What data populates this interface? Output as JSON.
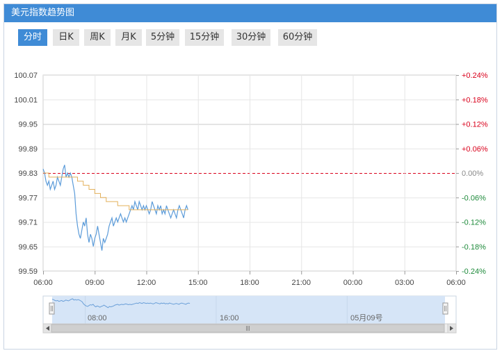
{
  "header": {
    "title": "美元指数趋势图"
  },
  "tabs": [
    {
      "label": "分时",
      "active": true
    },
    {
      "label": "日K",
      "active": false
    },
    {
      "label": "周K",
      "active": false
    },
    {
      "label": "月K",
      "active": false
    },
    {
      "label": "5分钟",
      "active": false
    },
    {
      "label": "15分钟",
      "active": false
    },
    {
      "label": "30分钟",
      "active": false
    },
    {
      "label": "60分钟",
      "active": false
    }
  ],
  "colors": {
    "accent": "#3f8bd6",
    "price_line": "#5b9bd9",
    "avg_line": "#e3b05a",
    "up": "#d9001b",
    "down": "#1e8a3b",
    "baseline": "#d9001b"
  },
  "chart_data": {
    "type": "line",
    "x_ticks": [
      "06:00",
      "09:00",
      "12:00",
      "15:00",
      "18:00",
      "21:00",
      "00:00",
      "03:00",
      "06:00"
    ],
    "y_ticks": [
      "100.07",
      "100.01",
      "99.95",
      "99.89",
      "99.83",
      "99.77",
      "99.71",
      "99.65",
      "99.59"
    ],
    "pct_ticks": [
      "+0.24%",
      "+0.18%",
      "+0.12%",
      "+0.06%",
      "0.00%",
      "-0.06%",
      "-0.12%",
      "-0.18%",
      "-0.24%"
    ],
    "ylim": [
      99.59,
      100.07
    ],
    "base_price": 99.83,
    "xlim_minutes": [
      0,
      1440
    ],
    "series": [
      {
        "type": "price",
        "x_minutes": [
          0,
          5,
          10,
          15,
          20,
          25,
          30,
          35,
          40,
          45,
          50,
          55,
          60,
          65,
          70,
          75,
          80,
          85,
          90,
          95,
          100,
          105,
          110,
          115,
          120,
          125,
          130,
          135,
          140,
          145,
          150,
          155,
          160,
          165,
          170,
          175,
          180,
          185,
          190,
          195,
          200,
          205,
          210,
          215,
          220,
          225,
          230,
          235,
          240,
          245,
          250,
          255,
          260,
          265,
          270,
          275,
          280,
          285,
          290,
          295,
          300,
          305,
          310,
          315,
          320,
          325,
          330,
          335,
          340,
          345,
          350,
          355,
          360,
          365,
          370,
          375,
          380,
          385,
          390,
          395,
          400,
          405,
          410,
          415,
          420,
          425,
          430,
          435,
          440,
          445,
          450,
          455,
          460,
          465,
          470,
          475,
          480,
          485,
          490,
          495,
          500,
          505
        ],
        "values": [
          99.84,
          99.83,
          99.81,
          99.8,
          99.81,
          99.79,
          99.8,
          99.81,
          99.79,
          99.8,
          99.82,
          99.81,
          99.8,
          99.82,
          99.84,
          99.85,
          99.82,
          99.83,
          99.82,
          99.83,
          99.82,
          99.8,
          99.78,
          99.73,
          99.7,
          99.68,
          99.67,
          99.69,
          99.71,
          99.7,
          99.72,
          99.68,
          99.66,
          99.68,
          99.67,
          99.65,
          99.67,
          99.68,
          99.7,
          99.68,
          99.66,
          99.64,
          99.67,
          99.66,
          99.67,
          99.68,
          99.7,
          99.71,
          99.72,
          99.7,
          99.71,
          99.72,
          99.71,
          99.72,
          99.73,
          99.72,
          99.71,
          99.72,
          99.71,
          99.72,
          99.73,
          99.74,
          99.75,
          99.74,
          99.76,
          99.75,
          99.74,
          99.76,
          99.75,
          99.74,
          99.75,
          99.74,
          99.75,
          99.74,
          99.73,
          99.74,
          99.76,
          99.75,
          99.74,
          99.73,
          99.75,
          99.74,
          99.75,
          99.73,
          99.74,
          99.73,
          99.75,
          99.74,
          99.73,
          99.72,
          99.73,
          99.74,
          99.73,
          99.72,
          99.74,
          99.75,
          99.74,
          99.73,
          99.72,
          99.74,
          99.75,
          99.74
        ]
      },
      {
        "type": "average",
        "x_minutes": [
          0,
          20,
          40,
          60,
          80,
          100,
          120,
          140,
          160,
          180,
          200,
          220,
          240,
          260,
          280,
          300,
          320,
          340,
          360,
          380,
          400,
          420,
          440,
          460,
          480,
          505
        ],
        "values": [
          99.83,
          99.82,
          99.82,
          99.82,
          99.82,
          99.82,
          99.81,
          99.8,
          99.79,
          99.78,
          99.77,
          99.76,
          99.76,
          99.75,
          99.75,
          99.74,
          99.74,
          99.74,
          99.74,
          99.74,
          99.74,
          99.74,
          99.74,
          99.74,
          99.74,
          99.74
        ]
      }
    ]
  },
  "navigator": {
    "labels": [
      "08:00",
      "16:00",
      "05月09号"
    ]
  }
}
